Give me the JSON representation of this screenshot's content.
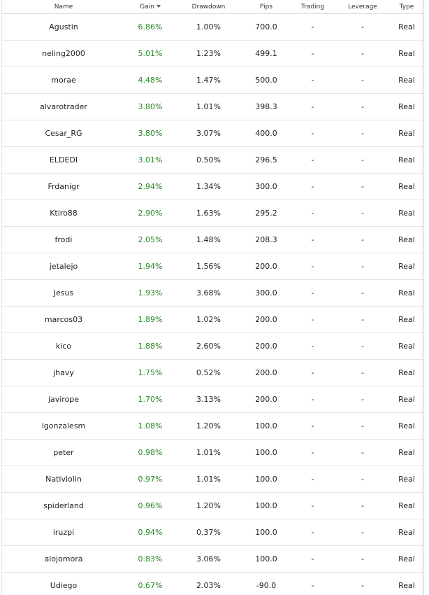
{
  "table": {
    "columns": [
      "Name",
      "Gain",
      "Drawdown",
      "Pips",
      "Trading",
      "Leverage",
      "Type"
    ],
    "rows": [
      [
        "Agustin",
        "6.86%",
        "1.00%",
        "700.0",
        "-",
        "-",
        "Real"
      ],
      [
        "neling2000",
        "5.01%",
        "1.23%",
        "499.1",
        "-",
        "-",
        "Real"
      ],
      [
        "morae",
        "4.48%",
        "1.47%",
        "500.0",
        "-",
        "-",
        "Real"
      ],
      [
        "alvarotrader",
        "3.80%",
        "1.01%",
        "398.3",
        "-",
        "-",
        "Real"
      ],
      [
        "Cesar_RG",
        "3.80%",
        "3.07%",
        "400.0",
        "-",
        "-",
        "Real"
      ],
      [
        "ELDEDI",
        "3.01%",
        "0.50%",
        "296.5",
        "-",
        "-",
        "Real"
      ],
      [
        "Frdanigr",
        "2.94%",
        "1.34%",
        "300.0",
        "-",
        "-",
        "Real"
      ],
      [
        "Ktiro88",
        "2.90%",
        "1.63%",
        "295.2",
        "-",
        "-",
        "Real"
      ],
      [
        "frodi",
        "2.05%",
        "1.48%",
        "208.3",
        "-",
        "-",
        "Real"
      ],
      [
        "jetalejo",
        "1.94%",
        "1.56%",
        "200.0",
        "-",
        "-",
        "Real"
      ],
      [
        "Jesus",
        "1.93%",
        "3.68%",
        "300.0",
        "-",
        "-",
        "Real"
      ],
      [
        "marcos03",
        "1.89%",
        "1.02%",
        "200.0",
        "-",
        "-",
        "Real"
      ],
      [
        "kico",
        "1.88%",
        "2.60%",
        "200.0",
        "-",
        "-",
        "Real"
      ],
      [
        "jhavy",
        "1.75%",
        "0.52%",
        "200.0",
        "-",
        "-",
        "Real"
      ],
      [
        "javirope",
        "1.70%",
        "3.13%",
        "200.0",
        "-",
        "-",
        "Real"
      ],
      [
        "lgonzalesm",
        "1.08%",
        "1.20%",
        "100.0",
        "-",
        "-",
        "Real"
      ],
      [
        "peter",
        "0.98%",
        "1.01%",
        "100.0",
        "-",
        "-",
        "Real"
      ],
      [
        "Nativiolin",
        "0.97%",
        "1.01%",
        "100.0",
        "-",
        "-",
        "Real"
      ],
      [
        "spiderland",
        "0.96%",
        "1.20%",
        "100.0",
        "-",
        "-",
        "Real"
      ],
      [
        "iruzpi",
        "0.94%",
        "0.37%",
        "100.0",
        "-",
        "-",
        "Real"
      ],
      [
        "alojomora",
        "0.83%",
        "3.06%",
        "100.0",
        "-",
        "-",
        "Real"
      ],
      [
        "Udiego",
        "0.67%",
        "2.03%",
        "-90.0",
        "-",
        "-",
        "Real"
      ]
    ]
  }
}
